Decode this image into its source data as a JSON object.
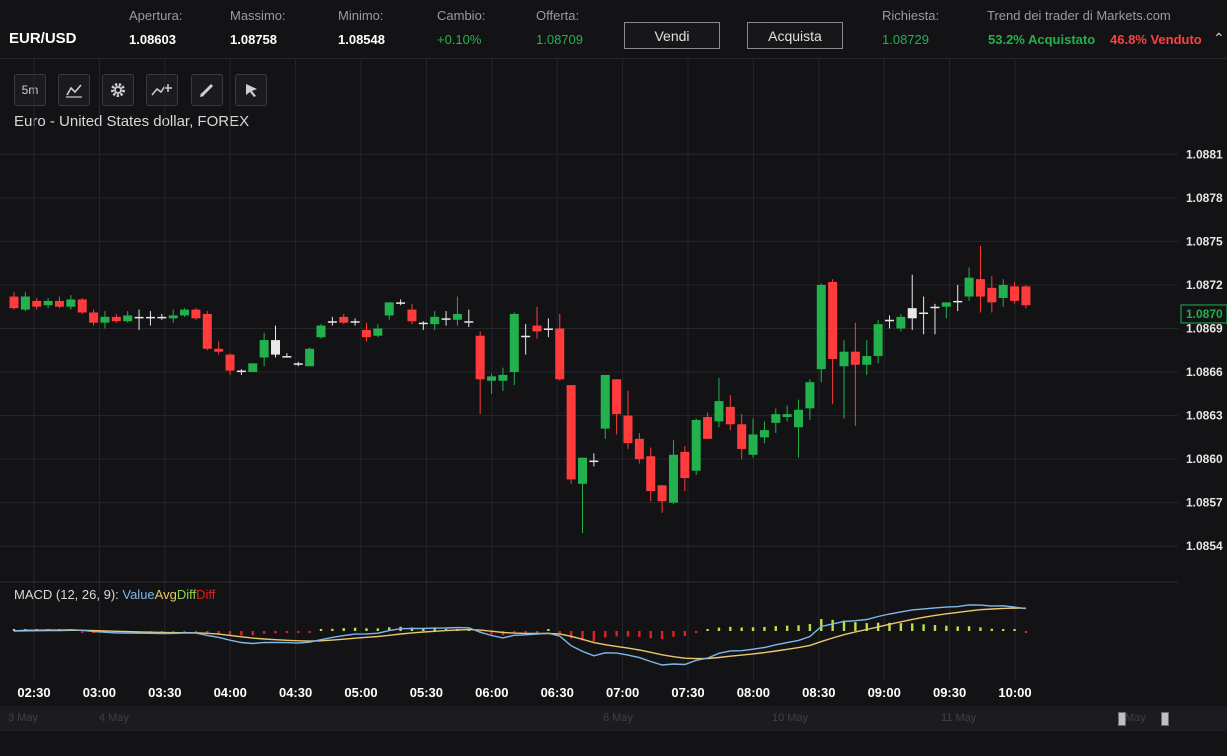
{
  "header": {
    "symbol": "EUR/USD",
    "open_label": "Apertura:",
    "open_value": "1.08603",
    "high_label": "Massimo:",
    "high_value": "1.08758",
    "low_label": "Minimo:",
    "low_value": "1.08548",
    "change_label": "Cambio:",
    "change_value": "+0.10%",
    "offer_label": "Offerta:",
    "offer_value": "1.08709",
    "sell_label": "Vendi",
    "buy_label": "Acquista",
    "ask_label": "Richiesta:",
    "ask_value": "1.08729",
    "trend_title": "Trend dei trader di Markets.com",
    "trend_buy": "53.2% Acquistato",
    "trend_sell": "46.8% Venduto"
  },
  "toolbar": {
    "interval_label": "5m"
  },
  "chart_title": "Euro - United States dollar, FOREX",
  "macd": {
    "name": "MACD (12, 26, 9): ",
    "value": "Value",
    "avg": "Avg",
    "diff": "Diff",
    "diff2": "Diff"
  },
  "colors": {
    "up": "#22b14c",
    "down": "#ff3b3b",
    "value_line": "#7fb8e8",
    "avg_line": "#e8c86a",
    "diff_pos": "#b8e04a",
    "diff_neg": "#e02020"
  },
  "navigator_labels": [
    "3 May",
    "4 May",
    "6 May",
    "10 May",
    "11 May",
    "May"
  ],
  "chart_data": {
    "type": "candlestick",
    "x_tick_labels": [
      "02:30",
      "03:00",
      "03:30",
      "04:00",
      "04:30",
      "05:00",
      "05:30",
      "06:00",
      "06:30",
      "07:00",
      "07:30",
      "08:00",
      "08:30",
      "09:00",
      "09:30",
      "10:00"
    ],
    "y_tick_labels": [
      "1.0881",
      "1.0878",
      "1.0875",
      "1.0872",
      "1.0869",
      "1.0866",
      "1.0863",
      "1.0860",
      "1.0857",
      "1.0854"
    ],
    "ylim": [
      1.08525,
      1.08835
    ],
    "last_price": "1.0870",
    "candles": [
      {
        "o": 1.08712,
        "h": 1.08715,
        "l": 1.08703,
        "c": 1.08704
      },
      {
        "o": 1.08703,
        "h": 1.08715,
        "l": 1.08702,
        "c": 1.08712
      },
      {
        "o": 1.08709,
        "h": 1.08711,
        "l": 1.08703,
        "c": 1.08705
      },
      {
        "o": 1.08706,
        "h": 1.08711,
        "l": 1.08704,
        "c": 1.08709
      },
      {
        "o": 1.08709,
        "h": 1.08712,
        "l": 1.08704,
        "c": 1.08705
      },
      {
        "o": 1.08705,
        "h": 1.08713,
        "l": 1.08703,
        "c": 1.0871
      },
      {
        "o": 1.0871,
        "h": 1.08711,
        "l": 1.087,
        "c": 1.08701
      },
      {
        "o": 1.08701,
        "h": 1.08703,
        "l": 1.08692,
        "c": 1.08694
      },
      {
        "o": 1.08694,
        "h": 1.08702,
        "l": 1.0869,
        "c": 1.08698
      },
      {
        "o": 1.08698,
        "h": 1.087,
        "l": 1.08694,
        "c": 1.08695
      },
      {
        "o": 1.08695,
        "h": 1.08702,
        "l": 1.08694,
        "c": 1.08699
      },
      {
        "o": 1.08698,
        "h": 1.08703,
        "l": 1.08689,
        "c": 1.08698
      },
      {
        "o": 1.08698,
        "h": 1.08702,
        "l": 1.08692,
        "c": 1.08698
      },
      {
        "o": 1.08698,
        "h": 1.087,
        "l": 1.08696,
        "c": 1.08697
      },
      {
        "o": 1.08697,
        "h": 1.08703,
        "l": 1.08694,
        "c": 1.08699
      },
      {
        "o": 1.08699,
        "h": 1.08704,
        "l": 1.08698,
        "c": 1.08703
      },
      {
        "o": 1.08703,
        "h": 1.08704,
        "l": 1.08696,
        "c": 1.08697
      },
      {
        "o": 1.087,
        "h": 1.08702,
        "l": 1.08675,
        "c": 1.08676
      },
      {
        "o": 1.08676,
        "h": 1.08681,
        "l": 1.08672,
        "c": 1.08674
      },
      {
        "o": 1.08672,
        "h": 1.08673,
        "l": 1.08658,
        "c": 1.08661
      },
      {
        "o": 1.08661,
        "h": 1.08662,
        "l": 1.08658,
        "c": 1.0866
      },
      {
        "o": 1.0866,
        "h": 1.08666,
        "l": 1.0866,
        "c": 1.08666
      },
      {
        "o": 1.0867,
        "h": 1.08687,
        "l": 1.08664,
        "c": 1.08682
      },
      {
        "o": 1.08682,
        "h": 1.08692,
        "l": 1.0867,
        "c": 1.08672
      },
      {
        "o": 1.08671,
        "h": 1.08673,
        "l": 1.0867,
        "c": 1.08671
      },
      {
        "o": 1.08666,
        "h": 1.08667,
        "l": 1.08664,
        "c": 1.08665
      },
      {
        "o": 1.08664,
        "h": 1.08677,
        "l": 1.08664,
        "c": 1.08676
      },
      {
        "o": 1.08684,
        "h": 1.08693,
        "l": 1.08683,
        "c": 1.08692
      },
      {
        "o": 1.08695,
        "h": 1.08698,
        "l": 1.08692,
        "c": 1.08695
      },
      {
        "o": 1.08698,
        "h": 1.087,
        "l": 1.08693,
        "c": 1.08694
      },
      {
        "o": 1.08695,
        "h": 1.08697,
        "l": 1.08692,
        "c": 1.08694
      },
      {
        "o": 1.08689,
        "h": 1.08694,
        "l": 1.08681,
        "c": 1.08684
      },
      {
        "o": 1.08685,
        "h": 1.08693,
        "l": 1.08684,
        "c": 1.0869
      },
      {
        "o": 1.08699,
        "h": 1.08708,
        "l": 1.08696,
        "c": 1.08708
      },
      {
        "o": 1.08707,
        "h": 1.0871,
        "l": 1.08706,
        "c": 1.08708
      },
      {
        "o": 1.08703,
        "h": 1.08707,
        "l": 1.08693,
        "c": 1.08695
      },
      {
        "o": 1.08693,
        "h": 1.08695,
        "l": 1.08689,
        "c": 1.08694
      },
      {
        "o": 1.08693,
        "h": 1.08702,
        "l": 1.08689,
        "c": 1.08698
      },
      {
        "o": 1.08696,
        "h": 1.08702,
        "l": 1.08692,
        "c": 1.08697
      },
      {
        "o": 1.08696,
        "h": 1.08712,
        "l": 1.08692,
        "c": 1.087
      },
      {
        "o": 1.08695,
        "h": 1.08703,
        "l": 1.08691,
        "c": 1.08695
      },
      {
        "o": 1.08685,
        "h": 1.08688,
        "l": 1.08631,
        "c": 1.08655
      },
      {
        "o": 1.08654,
        "h": 1.08659,
        "l": 1.08645,
        "c": 1.08657
      },
      {
        "o": 1.08654,
        "h": 1.08663,
        "l": 1.08647,
        "c": 1.08658
      },
      {
        "o": 1.0866,
        "h": 1.08701,
        "l": 1.08651,
        "c": 1.087
      },
      {
        "o": 1.08685,
        "h": 1.08693,
        "l": 1.08672,
        "c": 1.08684
      },
      {
        "o": 1.08692,
        "h": 1.08705,
        "l": 1.08683,
        "c": 1.08688
      },
      {
        "o": 1.08689,
        "h": 1.08697,
        "l": 1.08684,
        "c": 1.0869
      },
      {
        "o": 1.0869,
        "h": 1.087,
        "l": 1.08654,
        "c": 1.08655
      },
      {
        "o": 1.08651,
        "h": 1.08651,
        "l": 1.08583,
        "c": 1.08586
      },
      {
        "o": 1.08583,
        "h": 1.08601,
        "l": 1.08549,
        "c": 1.08601
      },
      {
        "o": 1.08599,
        "h": 1.08604,
        "l": 1.08595,
        "c": 1.08599
      },
      {
        "o": 1.08621,
        "h": 1.08658,
        "l": 1.08614,
        "c": 1.08658
      },
      {
        "o": 1.08655,
        "h": 1.08655,
        "l": 1.08617,
        "c": 1.08631
      },
      {
        "o": 1.0863,
        "h": 1.08647,
        "l": 1.08607,
        "c": 1.08611
      },
      {
        "o": 1.08614,
        "h": 1.08618,
        "l": 1.08597,
        "c": 1.086
      },
      {
        "o": 1.08602,
        "h": 1.08608,
        "l": 1.08571,
        "c": 1.08578
      },
      {
        "o": 1.08582,
        "h": 1.08582,
        "l": 1.08563,
        "c": 1.08571
      },
      {
        "o": 1.0857,
        "h": 1.08613,
        "l": 1.08569,
        "c": 1.08603
      },
      {
        "o": 1.08605,
        "h": 1.08609,
        "l": 1.08578,
        "c": 1.08587
      },
      {
        "o": 1.08592,
        "h": 1.08628,
        "l": 1.08589,
        "c": 1.08627
      },
      {
        "o": 1.08629,
        "h": 1.08632,
        "l": 1.08614,
        "c": 1.08614
      },
      {
        "o": 1.08626,
        "h": 1.08656,
        "l": 1.08622,
        "c": 1.0864
      },
      {
        "o": 1.08636,
        "h": 1.08644,
        "l": 1.0862,
        "c": 1.08624
      },
      {
        "o": 1.08624,
        "h": 1.08631,
        "l": 1.086,
        "c": 1.08607
      },
      {
        "o": 1.08603,
        "h": 1.08628,
        "l": 1.08601,
        "c": 1.08617
      },
      {
        "o": 1.08615,
        "h": 1.08626,
        "l": 1.08611,
        "c": 1.0862
      },
      {
        "o": 1.08625,
        "h": 1.08635,
        "l": 1.08618,
        "c": 1.08631
      },
      {
        "o": 1.08629,
        "h": 1.08637,
        "l": 1.08626,
        "c": 1.08631
      },
      {
        "o": 1.08622,
        "h": 1.08641,
        "l": 1.08601,
        "c": 1.08634
      },
      {
        "o": 1.08635,
        "h": 1.08655,
        "l": 1.08627,
        "c": 1.08653
      },
      {
        "o": 1.08662,
        "h": 1.08721,
        "l": 1.08653,
        "c": 1.0872
      },
      {
        "o": 1.08722,
        "h": 1.08724,
        "l": 1.08638,
        "c": 1.08669
      },
      {
        "o": 1.08664,
        "h": 1.08682,
        "l": 1.08628,
        "c": 1.08674
      },
      {
        "o": 1.08674,
        "h": 1.08694,
        "l": 1.08623,
        "c": 1.08665
      },
      {
        "o": 1.08665,
        "h": 1.08682,
        "l": 1.08658,
        "c": 1.08671
      },
      {
        "o": 1.08671,
        "h": 1.08696,
        "l": 1.08666,
        "c": 1.08693
      },
      {
        "o": 1.08696,
        "h": 1.08699,
        "l": 1.0869,
        "c": 1.08695
      },
      {
        "o": 1.0869,
        "h": 1.087,
        "l": 1.08688,
        "c": 1.08698
      },
      {
        "o": 1.08697,
        "h": 1.08727,
        "l": 1.08689,
        "c": 1.08704
      },
      {
        "o": 1.087,
        "h": 1.08712,
        "l": 1.08686,
        "c": 1.08701
      },
      {
        "o": 1.08704,
        "h": 1.08707,
        "l": 1.08686,
        "c": 1.08705
      },
      {
        "o": 1.08705,
        "h": 1.08708,
        "l": 1.08697,
        "c": 1.08708
      },
      {
        "o": 1.08708,
        "h": 1.0872,
        "l": 1.08702,
        "c": 1.08709
      },
      {
        "o": 1.08712,
        "h": 1.08732,
        "l": 1.08709,
        "c": 1.08725
      },
      {
        "o": 1.08724,
        "h": 1.08747,
        "l": 1.08701,
        "c": 1.08712
      },
      {
        "o": 1.08718,
        "h": 1.08726,
        "l": 1.08701,
        "c": 1.08708
      },
      {
        "o": 1.08711,
        "h": 1.08724,
        "l": 1.08705,
        "c": 1.0872
      },
      {
        "o": 1.08719,
        "h": 1.08722,
        "l": 1.08707,
        "c": 1.08709
      },
      {
        "o": 1.08719,
        "h": 1.0872,
        "l": 1.08704,
        "c": 1.08706
      }
    ],
    "indicator": "MACD (12, 26, 9)"
  }
}
